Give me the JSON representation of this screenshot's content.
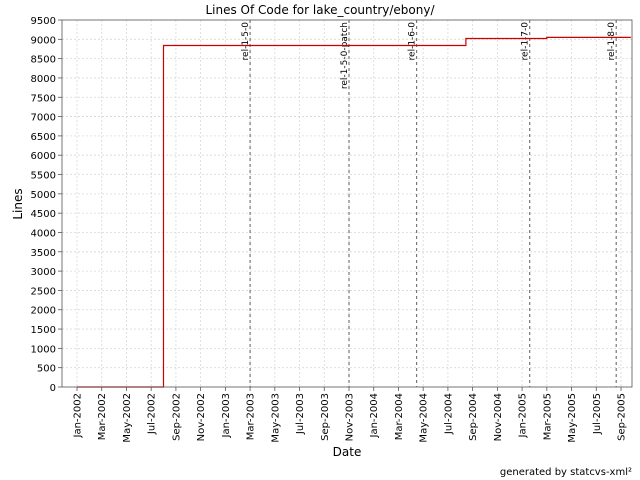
{
  "chart_data": {
    "type": "line",
    "title": "Lines Of Code for lake_country/ebony/",
    "xlabel": "Date",
    "ylabel": "Lines",
    "ylim": [
      0,
      9500
    ],
    "y_ticks": [
      0,
      500,
      1000,
      1500,
      2000,
      2500,
      3000,
      3500,
      4000,
      4500,
      5000,
      5500,
      6000,
      6500,
      7000,
      7500,
      8000,
      8500,
      9000,
      9500
    ],
    "x_ticks": [
      "Jan-2002",
      "Mar-2002",
      "May-2002",
      "Jul-2002",
      "Sep-2002",
      "Nov-2002",
      "Jan-2003",
      "Mar-2003",
      "May-2003",
      "Jul-2003",
      "Sep-2003",
      "Nov-2003",
      "Jan-2004",
      "Mar-2004",
      "May-2004",
      "Jul-2004",
      "Sep-2004",
      "Nov-2004",
      "Jan-2005",
      "Mar-2005",
      "May-2005",
      "Jul-2005",
      "Sep-2005"
    ],
    "grid": true,
    "line_color": "#cc0000",
    "series": [
      {
        "x": [
          "2002-01-01",
          "2002-08-01",
          "2002-08-01",
          "2004-08-15",
          "2004-08-15",
          "2005-03-01",
          "2005-03-01",
          "2005-09-25"
        ],
        "values": [
          0,
          0,
          8840,
          8840,
          9020,
          9020,
          9050,
          9050
        ]
      }
    ],
    "markers": [
      {
        "label": "rel-1-5-0",
        "date": "2003-03-01"
      },
      {
        "label": "rel-1-5-0-patch",
        "date": "2003-11-01"
      },
      {
        "label": "rel-1-6-0",
        "date": "2004-04-15"
      },
      {
        "label": "rel-1-7-0",
        "date": "2005-01-20"
      },
      {
        "label": "rel-1-8-0",
        "date": "2005-08-20"
      }
    ]
  },
  "footer": "generated by statcvs-xml²"
}
